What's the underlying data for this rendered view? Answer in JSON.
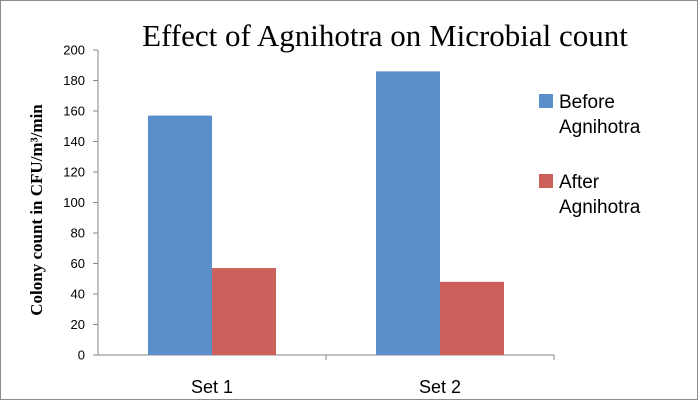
{
  "chart_data": {
    "type": "bar",
    "title": "Effect of Agnihotra on Microbial count",
    "ylabel": "Colony count in CFU/m³/min",
    "xlabel": "",
    "categories": [
      "Set 1",
      "Set 2"
    ],
    "series": [
      {
        "name": "Before Agnihotra",
        "values": [
          157,
          186
        ],
        "color": "#5b8fcc"
      },
      {
        "name": "After Agnihotra",
        "values": [
          57,
          48
        ],
        "color": "#cc615b"
      }
    ],
    "ylim": [
      0,
      200
    ],
    "yticks": [
      0,
      20,
      40,
      60,
      80,
      100,
      120,
      140,
      160,
      180,
      200
    ],
    "grid": false,
    "legend_position": "right"
  }
}
